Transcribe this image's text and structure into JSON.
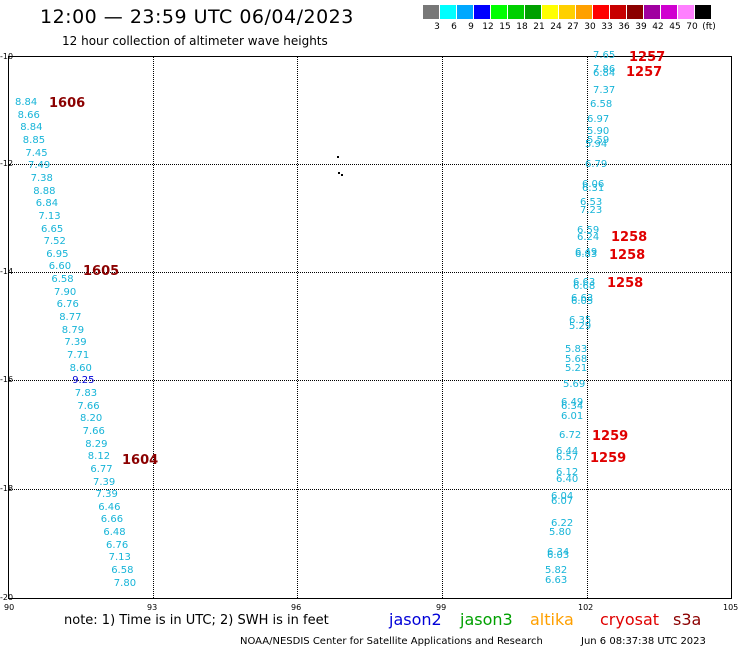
{
  "title": "12:00 — 23:59 UTC 06/04/2023",
  "subtitle": "12 hour collection of altimeter wave heights",
  "legend": {
    "colors": [
      "#787878",
      "#00ffff",
      "#00a8ff",
      "#0000ff",
      "#00ff00",
      "#00d000",
      "#00a000",
      "#ffff00",
      "#ffd000",
      "#ffa000",
      "#ff0000",
      "#c80000",
      "#8b0000",
      "#a000a0",
      "#d000d0",
      "#ff80ff",
      "#000000"
    ],
    "labels": [
      "3",
      "6",
      "9",
      "12",
      "15",
      "18",
      "21",
      "24",
      "27",
      "30",
      "33",
      "36",
      "39",
      "42",
      "45",
      "70",
      "(ft)"
    ]
  },
  "axis": {
    "y_ticks": [
      "-10",
      "-12",
      "-14",
      "-16",
      "-18",
      "-20"
    ],
    "x_ticks": [
      "90",
      "93",
      "96",
      "99",
      "102",
      "105"
    ]
  },
  "tracks": {
    "left": [
      {
        "v": "8.84",
        "c": "j3"
      },
      {
        "v": "8.66",
        "c": "j3"
      },
      {
        "v": "8.84",
        "c": "j3"
      },
      {
        "v": "8.85",
        "c": "j3"
      },
      {
        "v": "7.45",
        "c": "j3"
      },
      {
        "v": "7.49",
        "c": "j3"
      },
      {
        "v": "7.38",
        "c": "j3"
      },
      {
        "v": "8.88",
        "c": "j3"
      },
      {
        "v": "6.84",
        "c": "j3"
      },
      {
        "v": "7.13",
        "c": "j3"
      },
      {
        "v": "6.65",
        "c": "j3"
      },
      {
        "v": "7.52",
        "c": "j3"
      },
      {
        "v": "6.95",
        "c": "j3"
      },
      {
        "v": "6.60",
        "c": "j3"
      },
      {
        "v": "6.58",
        "c": "j3"
      },
      {
        "v": "7.90",
        "c": "j3"
      },
      {
        "v": "6.76",
        "c": "j3"
      },
      {
        "v": "8.77",
        "c": "j3"
      },
      {
        "v": "8.79",
        "c": "j3"
      },
      {
        "v": "7.39",
        "c": "j3"
      },
      {
        "v": "7.71",
        "c": "j3"
      },
      {
        "v": "8.60",
        "c": "j3"
      },
      {
        "v": "9.25",
        "c": "j2"
      },
      {
        "v": "7.83",
        "c": "j3"
      },
      {
        "v": "7.66",
        "c": "j3"
      },
      {
        "v": "8.20",
        "c": "j3"
      },
      {
        "v": "7.66",
        "c": "j3"
      },
      {
        "v": "8.29",
        "c": "j3"
      },
      {
        "v": "8.12",
        "c": "j3"
      },
      {
        "v": "6.77",
        "c": "j3"
      },
      {
        "v": "7.39",
        "c": "j3"
      },
      {
        "v": "7.39",
        "c": "j3"
      },
      {
        "v": "6.46",
        "c": "j3"
      },
      {
        "v": "6.66",
        "c": "j3"
      },
      {
        "v": "6.48",
        "c": "j3"
      },
      {
        "v": "6.76",
        "c": "j3"
      },
      {
        "v": "7.13",
        "c": "j3"
      },
      {
        "v": "6.58",
        "c": "j3"
      },
      {
        "v": "7.80",
        "c": "j3"
      }
    ],
    "right": [
      {
        "v": "7.65",
        "c": "j3"
      },
      {
        "v": "7.86",
        "c": "j3"
      },
      {
        "v": "6.84",
        "c": "j3"
      },
      {
        "v": "7.37",
        "c": "j3"
      },
      {
        "v": "6.58",
        "c": "j3"
      },
      {
        "v": "6.97",
        "c": "j3"
      },
      {
        "v": "5.90",
        "c": "j3"
      },
      {
        "v": "5.59",
        "c": "j3"
      },
      {
        "v": "5.94",
        "c": "j3"
      },
      {
        "v": "6.79",
        "c": "j3"
      },
      {
        "v": "6.06",
        "c": "j3"
      },
      {
        "v": "6.31",
        "c": "j3"
      },
      {
        "v": "6.53",
        "c": "j3"
      },
      {
        "v": "7.23",
        "c": "j3"
      },
      {
        "v": "6.59",
        "c": "j3"
      },
      {
        "v": "6.24",
        "c": "j3"
      },
      {
        "v": "6.49",
        "c": "j3"
      },
      {
        "v": "6.83",
        "c": "j3"
      },
      {
        "v": "6.63",
        "c": "j3"
      },
      {
        "v": "6.68",
        "c": "j3"
      },
      {
        "v": "6.63",
        "c": "j3"
      },
      {
        "v": "6.05",
        "c": "j3"
      },
      {
        "v": "6.35",
        "c": "j3"
      },
      {
        "v": "5.29",
        "c": "j3"
      },
      {
        "v": "5.83",
        "c": "j3"
      },
      {
        "v": "5.68",
        "c": "j3"
      },
      {
        "v": "5.21",
        "c": "j3"
      },
      {
        "v": "5.69",
        "c": "j3"
      },
      {
        "v": "6.49",
        "c": "j3"
      },
      {
        "v": "6.34",
        "c": "j3"
      },
      {
        "v": "6.01",
        "c": "j3"
      },
      {
        "v": "6.72",
        "c": "j3"
      },
      {
        "v": "6.44",
        "c": "j3"
      },
      {
        "v": "6.57",
        "c": "j3"
      },
      {
        "v": "6.12",
        "c": "j3"
      },
      {
        "v": "6.40",
        "c": "j3"
      },
      {
        "v": "6.04",
        "c": "j3"
      },
      {
        "v": "6.07",
        "c": "j3"
      },
      {
        "v": "6.22",
        "c": "j3"
      },
      {
        "v": "5.80",
        "c": "j3"
      },
      {
        "v": "6.34",
        "c": "j3"
      },
      {
        "v": "6.03",
        "c": "j3"
      },
      {
        "v": "5.82",
        "c": "j3"
      },
      {
        "v": "6.63",
        "c": "j3"
      }
    ]
  },
  "pass_times": {
    "left": [
      "1606",
      "1605",
      "1604"
    ],
    "right": [
      "1257",
      "1257",
      "1258",
      "1258",
      "1258",
      "1259",
      "1259"
    ]
  },
  "note": "note:  1) Time is in UTC;  2) SWH is in feet",
  "satellites": [
    {
      "name": "jason2",
      "color": "#0000d8"
    },
    {
      "name": "jason3",
      "color": "#00a000"
    },
    {
      "name": "altika",
      "color": "#ffa000"
    },
    {
      "name": "cryosat",
      "color": "#e00000"
    },
    {
      "name": "s3a",
      "color": "#8b0000"
    }
  ],
  "credit": "NOAA/NESDIS Center for Satellite Applications and Research",
  "credit_time": "Jun  6 08:37:38 UTC 2023"
}
